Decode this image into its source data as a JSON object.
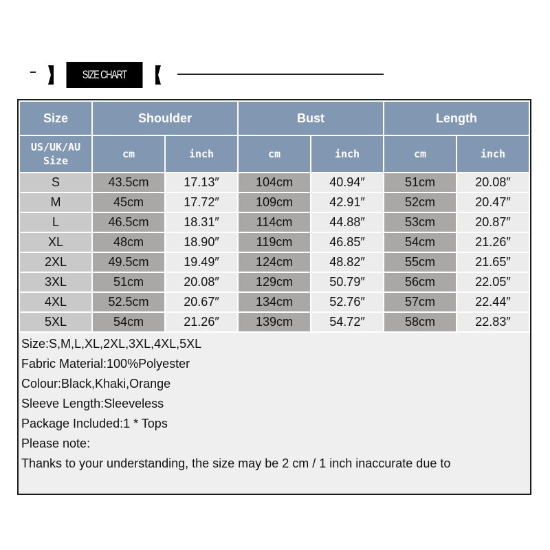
{
  "banner": {
    "title": "SIZE CHART"
  },
  "table": {
    "groups": [
      "Size",
      "Shoulder",
      "Bust",
      "Length"
    ],
    "size_label_line1": "US/UK/AU",
    "size_label_line2": "Size",
    "units": [
      "cm",
      "inch",
      "cm",
      "inch",
      "cm",
      "inch"
    ],
    "rows": [
      [
        "S",
        "43.5cm",
        "17.13″",
        "104cm",
        "40.94″",
        "51cm",
        "20.08″"
      ],
      [
        "M",
        "45cm",
        "17.72″",
        "109cm",
        "42.91″",
        "52cm",
        "20.47″"
      ],
      [
        "L",
        "46.5cm",
        "18.31″",
        "114cm",
        "44.88″",
        "53cm",
        "20.87″"
      ],
      [
        "XL",
        "48cm",
        "18.90″",
        "119cm",
        "46.85″",
        "54cm",
        "21.26″"
      ],
      [
        "2XL",
        "49.5cm",
        "19.49″",
        "124cm",
        "48.82″",
        "55cm",
        "21.65″"
      ],
      [
        "3XL",
        "51cm",
        "20.08″",
        "129cm",
        "50.79″",
        "56cm",
        "22.05″"
      ],
      [
        "4XL",
        "52.5cm",
        "20.67″",
        "134cm",
        "52.76″",
        "57cm",
        "22.44″"
      ],
      [
        "5XL",
        "54cm",
        "21.26″",
        "139cm",
        "54.72″",
        "58cm",
        "22.83″"
      ]
    ]
  },
  "notes": [
    "Size:S,M,L,XL,2XL,3XL,4XL,5XL",
    "Fabric Material:100%Polyester",
    "Colour:Black,Khaki,Orange",
    "Sleeve Length:Sleeveless",
    "Package Included:1 * Tops",
    "Please note:",
    "Thanks to your understanding, the size may be 2 cm / 1 inch inaccurate due to"
  ]
}
